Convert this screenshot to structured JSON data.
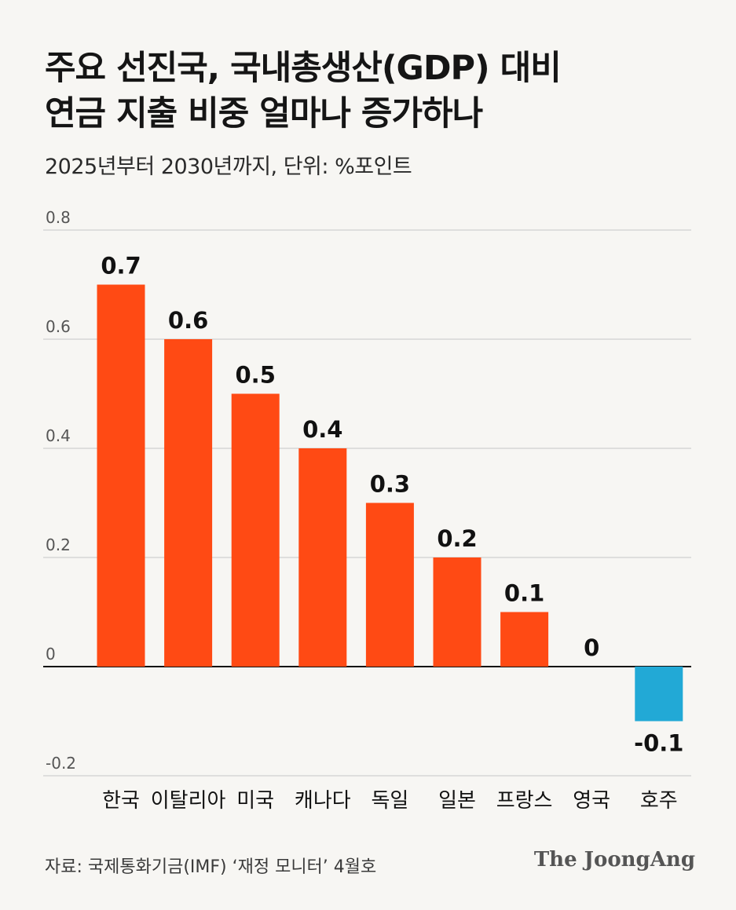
{
  "header": {
    "title_line1": "주요 선진국, 국내총생산(GDP) 대비",
    "title_line2": "연금 지출 비중 얼마나 증가하나",
    "subtitle": "2025년부터 2030년까지, 단위: %포인트"
  },
  "chart_data": {
    "type": "bar",
    "categories": [
      "한국",
      "이탈리아",
      "미국",
      "캐나다",
      "독일",
      "일본",
      "프랑스",
      "영국",
      "호주"
    ],
    "values": [
      0.7,
      0.6,
      0.5,
      0.4,
      0.3,
      0.2,
      0.1,
      0,
      -0.1
    ],
    "value_labels": [
      "0.7",
      "0.6",
      "0.5",
      "0.4",
      "0.3",
      "0.2",
      "0.1",
      "0",
      "-0.1"
    ],
    "ylim": [
      -0.2,
      0.8
    ],
    "yticks": [
      0.8,
      0.6,
      0.4,
      0.2,
      0,
      -0.2
    ],
    "ytick_labels": [
      "0.8",
      "0.6",
      "0.4",
      "0.2",
      "0",
      "-0.2"
    ],
    "grid": true,
    "positive_color": "#ff4a14",
    "negative_color": "#22a9d6"
  },
  "footer": {
    "source": "자료: 국제통화기금(IMF) ‘재정 모니터’ 4월호",
    "brand": "The JoongAng"
  }
}
